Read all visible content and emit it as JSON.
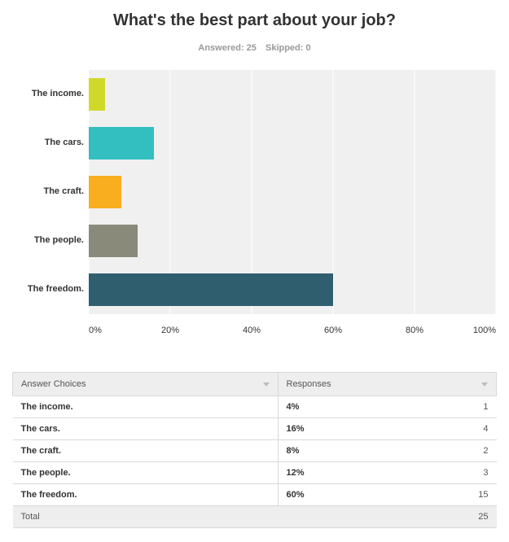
{
  "header": {
    "title": "What's the best part about your job?",
    "answered": "Answered: 25",
    "skipped": "Skipped: 0"
  },
  "chart_data": {
    "type": "bar",
    "orientation": "horizontal",
    "title": "What's the best part about your job?",
    "categories": [
      "The income.",
      "The cars.",
      "The craft.",
      "The people.",
      "The freedom."
    ],
    "values": [
      4,
      16,
      8,
      12,
      60
    ],
    "colors": [
      "#d0d92a",
      "#33bfbf",
      "#f9ae1f",
      "#8a8a7b",
      "#2f5f6f"
    ],
    "xlim": [
      0,
      100
    ],
    "x_ticks": [
      "0%",
      "20%",
      "40%",
      "60%",
      "80%",
      "100%"
    ],
    "grid": true,
    "background": "#f0f0f0"
  },
  "table": {
    "headers": [
      "Answer Choices",
      "Responses"
    ],
    "rows": [
      {
        "choice": "The income.",
        "percent": "4%",
        "count": "1"
      },
      {
        "choice": "The cars.",
        "percent": "16%",
        "count": "4"
      },
      {
        "choice": "The craft.",
        "percent": "8%",
        "count": "2"
      },
      {
        "choice": "The people.",
        "percent": "12%",
        "count": "3"
      },
      {
        "choice": "The freedom.",
        "percent": "60%",
        "count": "15"
      }
    ],
    "total_label": "Total",
    "total_count": "25"
  }
}
